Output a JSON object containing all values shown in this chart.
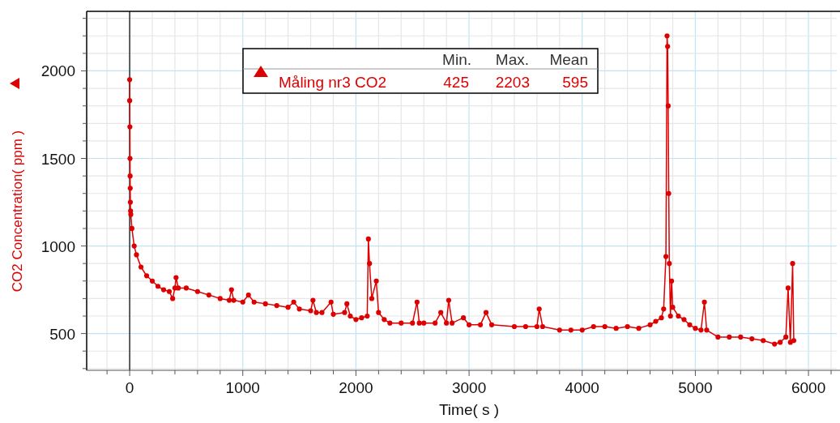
{
  "chart_data": {
    "type": "line",
    "xlabel": "Time( s )",
    "ylabel": "CO2 Concentration( ppm )",
    "x": [
      0,
      0,
      2,
      3,
      4,
      5,
      6,
      8,
      10,
      20,
      40,
      60,
      100,
      150,
      200,
      250,
      300,
      350,
      380,
      400,
      410,
      430,
      500,
      600,
      700,
      800,
      880,
      900,
      920,
      1000,
      1050,
      1100,
      1200,
      1300,
      1400,
      1450,
      1500,
      1600,
      1620,
      1650,
      1700,
      1780,
      1800,
      1900,
      1920,
      1950,
      2000,
      2050,
      2100,
      2110,
      2120,
      2140,
      2180,
      2200,
      2250,
      2300,
      2400,
      2500,
      2540,
      2560,
      2600,
      2700,
      2750,
      2800,
      2820,
      2850,
      2950,
      3000,
      3100,
      3150,
      3200,
      3400,
      3500,
      3600,
      3620,
      3650,
      3800,
      3900,
      4000,
      4100,
      4200,
      4300,
      4400,
      4500,
      4600,
      4650,
      4700,
      4720,
      4740,
      4750,
      4755,
      4760,
      4765,
      4770,
      4780,
      4790,
      4800,
      4850,
      4900,
      4950,
      5000,
      5050,
      5080,
      5100,
      5200,
      5300,
      5400,
      5500,
      5600,
      5700,
      5750,
      5800,
      5820,
      5840,
      5860,
      5870
    ],
    "series": [
      {
        "name": "Måling nr3 CO2",
        "color": "#dd0000",
        "values": [
          1950,
          1830,
          1680,
          1500,
          1400,
          1330,
          1250,
          1200,
          1180,
          1100,
          1000,
          950,
          880,
          830,
          800,
          770,
          750,
          740,
          700,
          760,
          820,
          760,
          760,
          740,
          720,
          700,
          690,
          750,
          690,
          680,
          720,
          680,
          670,
          660,
          650,
          680,
          640,
          630,
          690,
          620,
          620,
          680,
          610,
          620,
          670,
          600,
          580,
          590,
          600,
          1040,
          900,
          700,
          800,
          620,
          580,
          560,
          560,
          560,
          680,
          560,
          560,
          560,
          620,
          560,
          690,
          560,
          590,
          550,
          550,
          620,
          550,
          540,
          540,
          540,
          640,
          540,
          520,
          520,
          520,
          540,
          540,
          530,
          540,
          530,
          550,
          570,
          590,
          640,
          940,
          2200,
          2140,
          1800,
          1300,
          900,
          600,
          800,
          650,
          600,
          580,
          550,
          530,
          520,
          680,
          520,
          480,
          480,
          480,
          470,
          460,
          440,
          450,
          480,
          760,
          450,
          900,
          460
        ]
      }
    ],
    "xlim": [
      -380,
      6250
    ],
    "ylim": [
      290,
      2340
    ],
    "xticks": [
      {
        "value": -200,
        "label": null
      },
      0,
      {
        "value": 200,
        "label": null
      },
      {
        "value": 400,
        "label": null
      },
      {
        "value": 600,
        "label": null
      },
      {
        "value": 800,
        "label": null
      },
      1000,
      {
        "value": 1200,
        "label": null
      },
      {
        "value": 1400,
        "label": null
      },
      {
        "value": 1600,
        "label": null
      },
      {
        "value": 1800,
        "label": null
      },
      2000,
      {
        "value": 2200,
        "label": null
      },
      {
        "value": 2400,
        "label": null
      },
      {
        "value": 2600,
        "label": null
      },
      {
        "value": 2800,
        "label": null
      },
      3000,
      {
        "value": 3200,
        "label": null
      },
      {
        "value": 3400,
        "label": null
      },
      {
        "value": 3600,
        "label": null
      },
      {
        "value": 3800,
        "label": null
      },
      4000,
      {
        "value": 4200,
        "label": null
      },
      {
        "value": 4400,
        "label": null
      },
      {
        "value": 4600,
        "label": null
      },
      {
        "value": 4800,
        "label": null
      },
      5000,
      {
        "value": 5200,
        "label": null
      },
      {
        "value": 5400,
        "label": null
      },
      {
        "value": 5600,
        "label": null
      },
      {
        "value": 5800,
        "label": null
      },
      6000,
      {
        "value": 6200,
        "label": null
      }
    ],
    "yticks": [
      {
        "value": 300,
        "label": null
      },
      {
        "value": 400,
        "label": null
      },
      500,
      {
        "value": 600,
        "label": null
      },
      {
        "value": 700,
        "label": null
      },
      {
        "value": 800,
        "label": null
      },
      {
        "value": 900,
        "label": null
      },
      1000,
      {
        "value": 1100,
        "label": null
      },
      {
        "value": 1200,
        "label": null
      },
      {
        "value": 1300,
        "label": null
      },
      {
        "value": 1400,
        "label": null
      },
      1500,
      {
        "value": 1600,
        "label": null
      },
      {
        "value": 1700,
        "label": null
      },
      {
        "value": 1800,
        "label": null
      },
      {
        "value": 1900,
        "label": null
      },
      2000,
      {
        "value": 2100,
        "label": null
      },
      {
        "value": 2200,
        "label": null
      },
      {
        "value": 2300,
        "label": null
      }
    ],
    "grid": true,
    "legend": "top",
    "marker": "circle",
    "line_style": "solid",
    "ref_lines": [
      {
        "axis": "x",
        "value": 0,
        "color": "#000000"
      }
    ],
    "annotations": [
      "Min.",
      "Max.",
      "Mean",
      "425",
      "2203",
      "595"
    ]
  }
}
